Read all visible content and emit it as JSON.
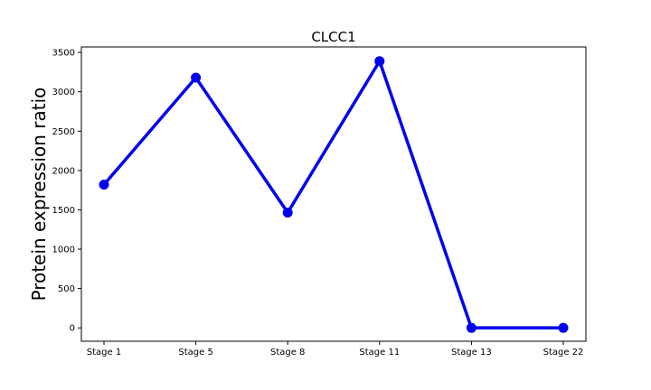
{
  "chart_data": {
    "type": "line",
    "title": "CLCC1",
    "xlabel": "",
    "ylabel": "Protein expression ratio",
    "categories": [
      "Stage 1",
      "Stage 5",
      "Stage 8",
      "Stage 11",
      "Stage 13",
      "Stage 22"
    ],
    "series": [
      {
        "values": [
          1820,
          3180,
          1465,
          3390,
          0,
          0
        ],
        "color": "#0000ee"
      }
    ],
    "yticks": [
      "0",
      "500",
      "1000",
      "1500",
      "2000",
      "2500",
      "3000",
      "3500"
    ],
    "ylim": [
      -170,
      3570
    ],
    "grid": false,
    "legend": "none"
  }
}
